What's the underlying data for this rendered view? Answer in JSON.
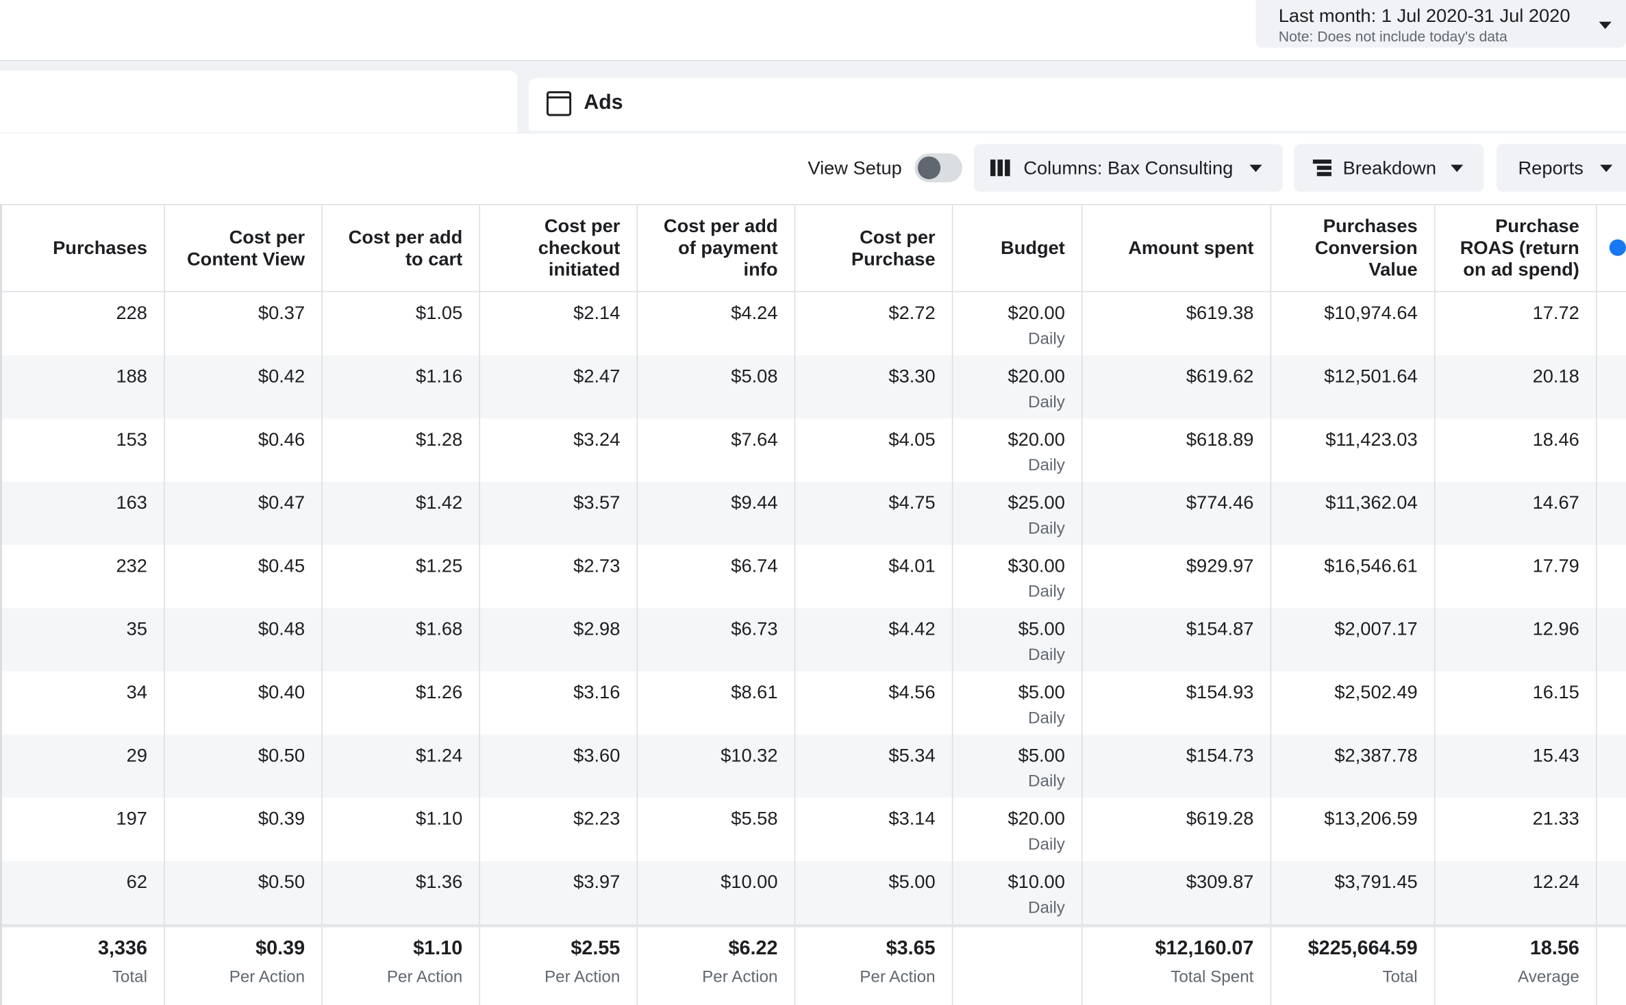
{
  "header": {
    "date_range": "Last month: 1 Jul 2020-31 Jul 2020",
    "note": "Note: Does not include today's data"
  },
  "tab": "Ads",
  "toolbar": {
    "view_setup": "View Setup",
    "columns": "Columns: Bax Consulting",
    "breakdown": "Breakdown",
    "reports": "Reports"
  },
  "table": {
    "columns": [
      "Purchases",
      "Cost per Content View",
      "Cost per add to cart",
      "Cost per checkout initiated",
      "Cost per add of payment info",
      "Cost per Purchase",
      "Budget",
      "Amount spent",
      "Purchases Conversion Value",
      "Purchase ROAS (return on ad spend)"
    ],
    "rows": [
      [
        "228",
        "$0.37",
        "$1.05",
        "$2.14",
        "$4.24",
        "$2.72",
        {
          "amount": "$20.00",
          "period": "Daily"
        },
        "$619.38",
        "$10,974.64",
        "17.72"
      ],
      [
        "188",
        "$0.42",
        "$1.16",
        "$2.47",
        "$5.08",
        "$3.30",
        {
          "amount": "$20.00",
          "period": "Daily"
        },
        "$619.62",
        "$12,501.64",
        "20.18"
      ],
      [
        "153",
        "$0.46",
        "$1.28",
        "$3.24",
        "$7.64",
        "$4.05",
        {
          "amount": "$20.00",
          "period": "Daily"
        },
        "$618.89",
        "$11,423.03",
        "18.46"
      ],
      [
        "163",
        "$0.47",
        "$1.42",
        "$3.57",
        "$9.44",
        "$4.75",
        {
          "amount": "$25.00",
          "period": "Daily"
        },
        "$774.46",
        "$11,362.04",
        "14.67"
      ],
      [
        "232",
        "$0.45",
        "$1.25",
        "$2.73",
        "$6.74",
        "$4.01",
        {
          "amount": "$30.00",
          "period": "Daily"
        },
        "$929.97",
        "$16,546.61",
        "17.79"
      ],
      [
        "35",
        "$0.48",
        "$1.68",
        "$2.98",
        "$6.73",
        "$4.42",
        {
          "amount": "$5.00",
          "period": "Daily"
        },
        "$154.87",
        "$2,007.17",
        "12.96"
      ],
      [
        "34",
        "$0.40",
        "$1.26",
        "$3.16",
        "$8.61",
        "$4.56",
        {
          "amount": "$5.00",
          "period": "Daily"
        },
        "$154.93",
        "$2,502.49",
        "16.15"
      ],
      [
        "29",
        "$0.50",
        "$1.24",
        "$3.60",
        "$10.32",
        "$5.34",
        {
          "amount": "$5.00",
          "period": "Daily"
        },
        "$154.73",
        "$2,387.78",
        "15.43"
      ],
      [
        "197",
        "$0.39",
        "$1.10",
        "$2.23",
        "$5.58",
        "$3.14",
        {
          "amount": "$20.00",
          "period": "Daily"
        },
        "$619.28",
        "$13,206.59",
        "21.33"
      ],
      [
        "62",
        "$0.50",
        "$1.36",
        "$3.97",
        "$10.00",
        "$5.00",
        {
          "amount": "$10.00",
          "period": "Daily"
        },
        "$309.87",
        "$3,791.45",
        "12.24"
      ]
    ],
    "totals": [
      {
        "value": "3,336",
        "label": "Total"
      },
      {
        "value": "$0.39",
        "label": "Per Action"
      },
      {
        "value": "$1.10",
        "label": "Per Action"
      },
      {
        "value": "$2.55",
        "label": "Per Action"
      },
      {
        "value": "$6.22",
        "label": "Per Action"
      },
      {
        "value": "$3.65",
        "label": "Per Action"
      },
      null,
      {
        "value": "$12,160.07",
        "label": "Total Spent"
      },
      {
        "value": "$225,664.59",
        "label": "Total"
      },
      {
        "value": "18.56",
        "label": "Average"
      }
    ]
  }
}
